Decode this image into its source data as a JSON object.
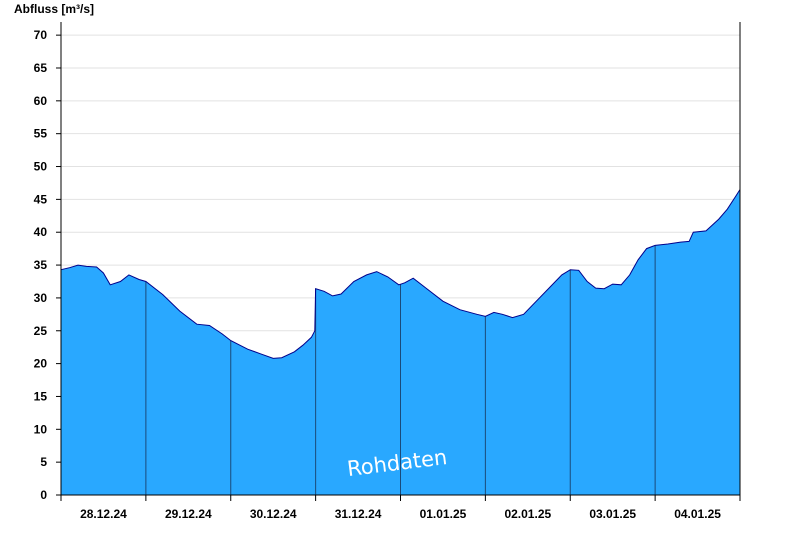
{
  "chart_data": {
    "type": "area",
    "title": "",
    "ylabel": "Abfluss [m³/s]",
    "xlabel": "",
    "ylim": [
      0,
      72
    ],
    "yticks": [
      0,
      5,
      10,
      15,
      20,
      25,
      30,
      35,
      40,
      45,
      50,
      55,
      60,
      65,
      70
    ],
    "grid": "horizontal",
    "x_range_days": [
      0,
      8
    ],
    "date_labels": [
      "28.12.24",
      "29.12.24",
      "30.12.24",
      "31.12.24",
      "01.01.25",
      "02.01.25",
      "03.01.25",
      "04.01.25"
    ],
    "watermark": "Rohdaten",
    "colors": {
      "fill": "#29a8ff",
      "outline": "#00008b",
      "day_divider": "#1a4a7a",
      "grid": "#e2e2e2"
    },
    "series": [
      {
        "values": [
          [
            0.0,
            34.3
          ],
          [
            0.1,
            34.6
          ],
          [
            0.2,
            35.0
          ],
          [
            0.3,
            34.8
          ],
          [
            0.42,
            34.7
          ],
          [
            0.5,
            33.8
          ],
          [
            0.58,
            32.0
          ],
          [
            0.7,
            32.5
          ],
          [
            0.8,
            33.5
          ],
          [
            0.92,
            32.8
          ],
          [
            1.0,
            32.5
          ],
          [
            1.2,
            30.5
          ],
          [
            1.4,
            28.0
          ],
          [
            1.6,
            26.0
          ],
          [
            1.75,
            25.8
          ],
          [
            1.9,
            24.5
          ],
          [
            2.0,
            23.5
          ],
          [
            2.2,
            22.2
          ],
          [
            2.35,
            21.5
          ],
          [
            2.5,
            20.8
          ],
          [
            2.6,
            20.9
          ],
          [
            2.75,
            21.8
          ],
          [
            2.85,
            22.8
          ],
          [
            2.95,
            24.0
          ],
          [
            2.99,
            25.0
          ],
          [
            3.0,
            31.4
          ],
          [
            3.1,
            31.0
          ],
          [
            3.2,
            30.3
          ],
          [
            3.3,
            30.6
          ],
          [
            3.45,
            32.5
          ],
          [
            3.6,
            33.5
          ],
          [
            3.72,
            34.0
          ],
          [
            3.85,
            33.2
          ],
          [
            3.98,
            32.0
          ],
          [
            4.05,
            32.3
          ],
          [
            4.15,
            33.0
          ],
          [
            4.3,
            31.5
          ],
          [
            4.5,
            29.5
          ],
          [
            4.7,
            28.2
          ],
          [
            4.9,
            27.5
          ],
          [
            5.0,
            27.2
          ],
          [
            5.1,
            27.8
          ],
          [
            5.2,
            27.5
          ],
          [
            5.32,
            27.0
          ],
          [
            5.45,
            27.5
          ],
          [
            5.6,
            29.5
          ],
          [
            5.75,
            31.5
          ],
          [
            5.9,
            33.5
          ],
          [
            6.0,
            34.3
          ],
          [
            6.1,
            34.2
          ],
          [
            6.2,
            32.5
          ],
          [
            6.3,
            31.5
          ],
          [
            6.4,
            31.4
          ],
          [
            6.5,
            32.1
          ],
          [
            6.6,
            32.0
          ],
          [
            6.7,
            33.5
          ],
          [
            6.8,
            35.8
          ],
          [
            6.9,
            37.5
          ],
          [
            7.0,
            38.0
          ],
          [
            7.15,
            38.2
          ],
          [
            7.3,
            38.5
          ],
          [
            7.4,
            38.6
          ],
          [
            7.45,
            40.0
          ],
          [
            7.6,
            40.2
          ],
          [
            7.75,
            42.0
          ],
          [
            7.85,
            43.5
          ],
          [
            7.95,
            45.5
          ],
          [
            8.0,
            46.5
          ]
        ]
      }
    ]
  }
}
